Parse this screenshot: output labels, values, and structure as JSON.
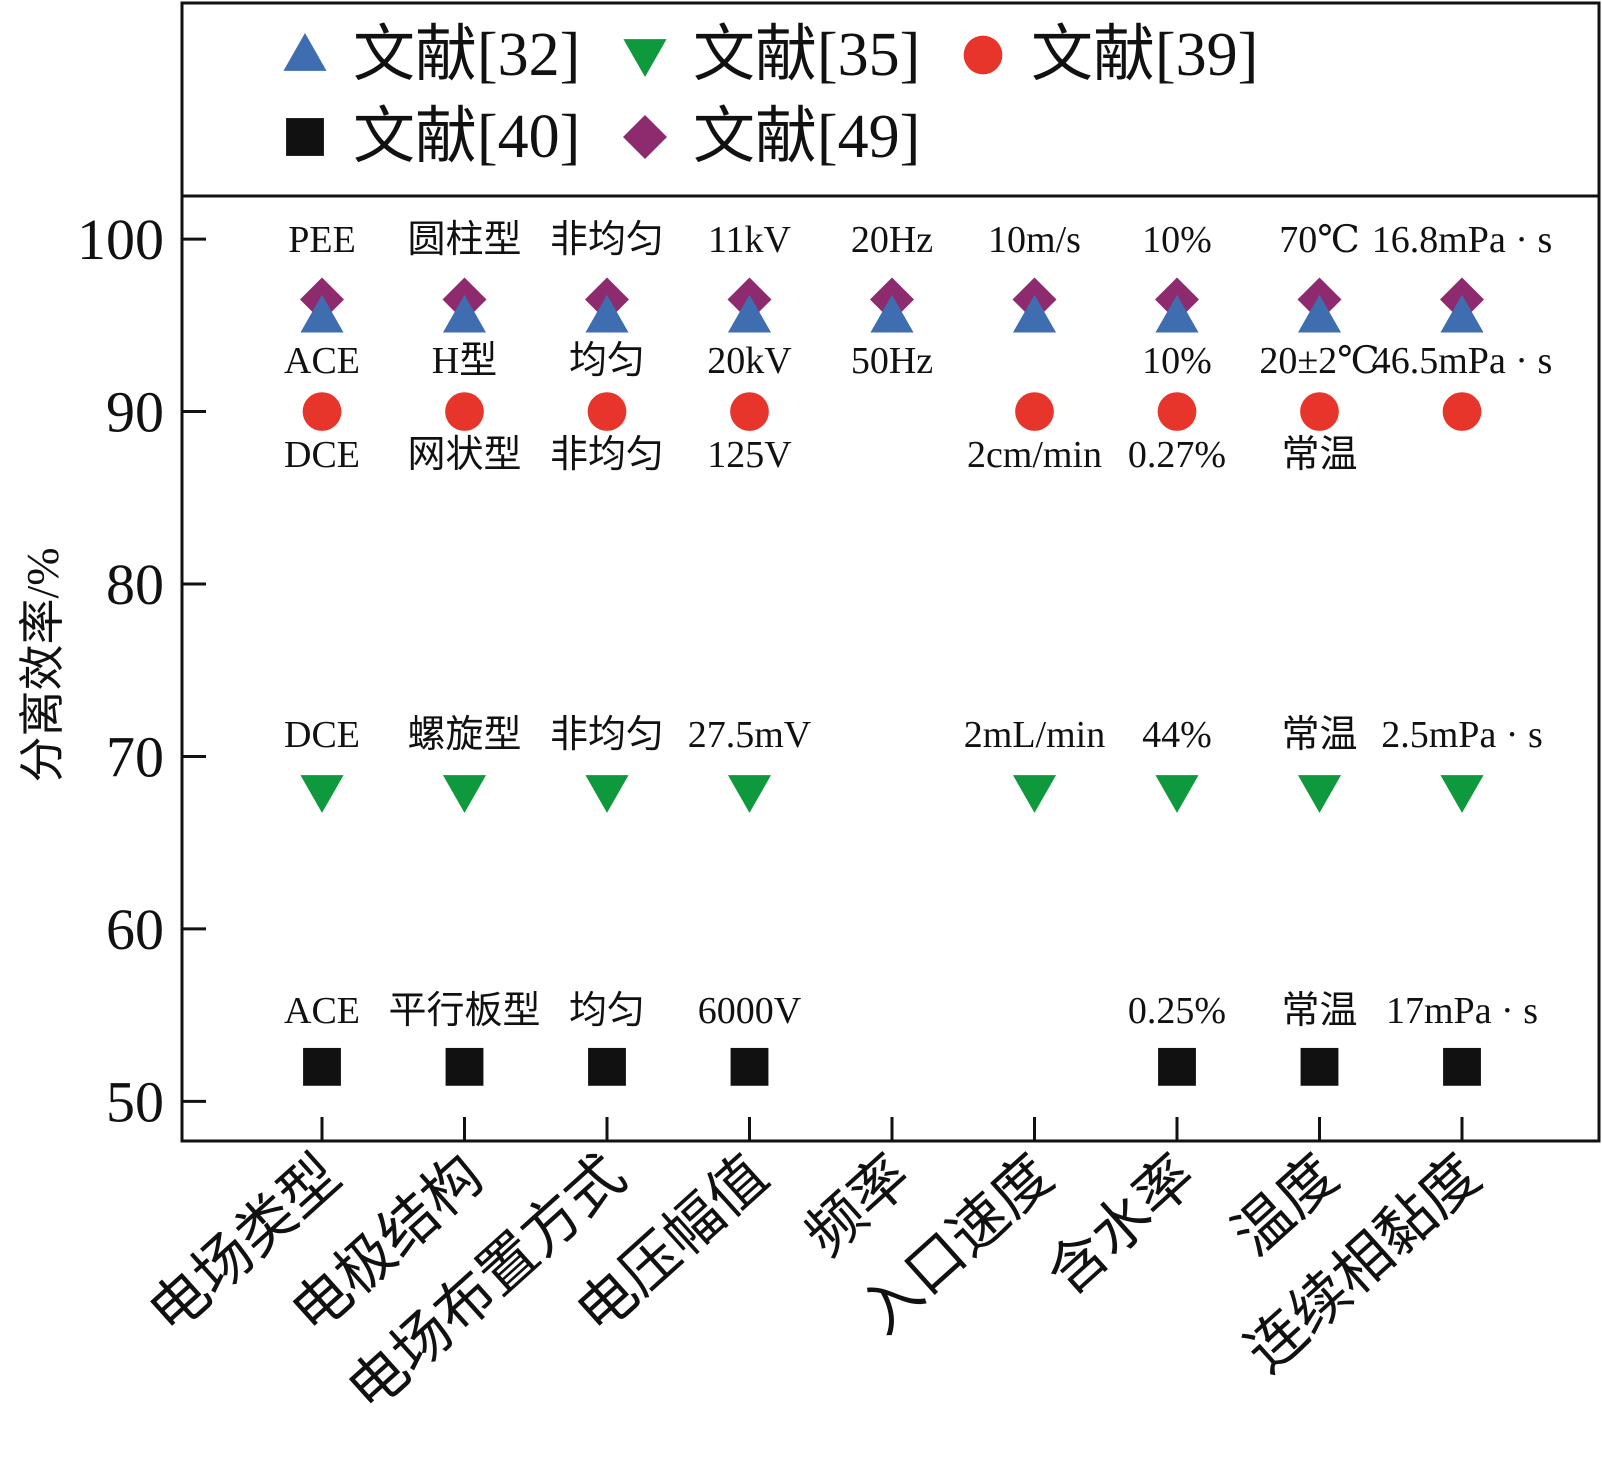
{
  "chart_data": {
    "type": "scatter",
    "title": "",
    "xlabel": "",
    "ylabel": "分离效率/%",
    "ylim": [
      47.7,
      102.5
    ],
    "yticks": [
      50,
      60,
      70,
      80,
      90,
      100
    ],
    "grid": false,
    "legend_position": "top",
    "categories": [
      "电场类型",
      "电极结构",
      "电场布置方式",
      "电压幅值",
      "频率",
      "入口速度",
      "含水率",
      "温度",
      "连续相黏度"
    ],
    "series": [
      {
        "name": "文献[32]",
        "marker": "triangle-up",
        "color": "#3f6eb0",
        "values": [
          95.5,
          95.5,
          95.5,
          95.5,
          95.5,
          95.5,
          95.5,
          95.5,
          95.5
        ],
        "labels": [
          "ACE",
          "H型",
          "均匀",
          "20kV",
          "50Hz",
          "",
          "10%",
          "20±2℃",
          "46.5mPa · s"
        ]
      },
      {
        "name": "文献[35]",
        "marker": "triangle-down",
        "color": "#0e9a3c",
        "values": [
          68,
          68,
          68,
          68,
          null,
          68,
          68,
          68,
          68
        ],
        "labels": [
          "DCE",
          "螺旋型",
          "非均匀",
          "27.5mV",
          "",
          "2mL/min",
          "44%",
          "常温",
          "2.5mPa · s"
        ]
      },
      {
        "name": "文献[39]",
        "marker": "circle",
        "color": "#e8352b",
        "values": [
          90,
          90,
          90,
          90,
          null,
          90,
          90,
          90,
          90
        ],
        "labels": [
          "DCE",
          "网状型",
          "非均匀",
          "125V",
          "",
          "2cm/min",
          "0.27%",
          "常温",
          ""
        ]
      },
      {
        "name": "文献[40]",
        "marker": "square",
        "color": "#111111",
        "values": [
          52,
          52,
          52,
          52,
          null,
          null,
          52,
          52,
          52
        ],
        "labels": [
          "ACE",
          "平行板型",
          "均匀",
          "6000V",
          "",
          "",
          "0.25%",
          "常温",
          "17mPa · s"
        ]
      },
      {
        "name": "文献[49]",
        "marker": "diamond",
        "color": "#8e2a6e",
        "values": [
          96.5,
          96.5,
          96.5,
          96.5,
          96.5,
          96.5,
          96.5,
          96.5,
          96.5
        ],
        "labels": [
          "PEE",
          "圆柱型",
          "非均匀",
          "11kV",
          "20Hz",
          "10m/s",
          "10%",
          "70℃",
          "16.8mPa · s"
        ]
      }
    ]
  }
}
